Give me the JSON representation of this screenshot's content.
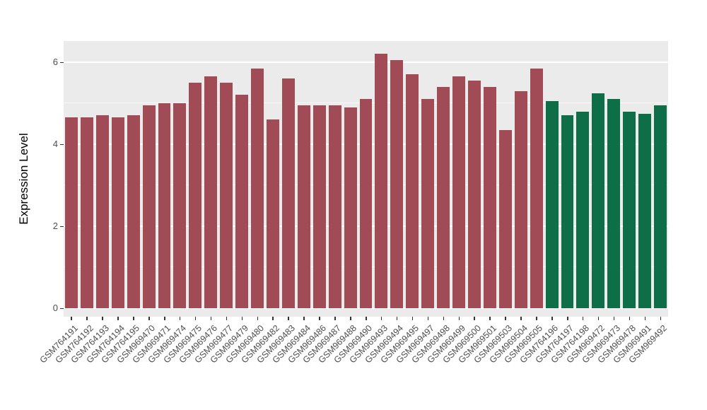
{
  "chart_data": {
    "type": "bar",
    "title": "",
    "xlabel": "",
    "ylabel": "Expression Level",
    "ylim": [
      0,
      6.5
    ],
    "yticks": [
      0,
      2,
      4,
      6
    ],
    "minor_yticks": [
      1,
      3,
      5
    ],
    "grid": true,
    "legend_position": "none",
    "panel_background": "#EBEBEB",
    "grid_color": "#FFFFFF",
    "group_colors": {
      "groupA": "#A04B55",
      "groupB": "#0E6E48"
    },
    "categories": [
      "GSM764191",
      "GSM764192",
      "GSM764193",
      "GSM764194",
      "GSM764195",
      "GSM969470",
      "GSM969471",
      "GSM969474",
      "GSM969475",
      "GSM969476",
      "GSM969477",
      "GSM969479",
      "GSM969480",
      "GSM969482",
      "GSM969483",
      "GSM969484",
      "GSM969486",
      "GSM969487",
      "GSM969488",
      "GSM969490",
      "GSM969493",
      "GSM969494",
      "GSM969495",
      "GSM969497",
      "GSM969498",
      "GSM969499",
      "GSM969500",
      "GSM969501",
      "GSM969503",
      "GSM969504",
      "GSM969505",
      "GSM764196",
      "GSM764197",
      "GSM764198",
      "GSM969472",
      "GSM969473",
      "GSM969478",
      "GSM969491",
      "GSM969492"
    ],
    "values": [
      4.65,
      4.65,
      4.7,
      4.65,
      4.7,
      4.95,
      5.0,
      5.0,
      5.5,
      5.65,
      5.5,
      5.2,
      5.85,
      4.6,
      5.6,
      4.95,
      4.95,
      4.95,
      4.9,
      5.1,
      6.2,
      6.05,
      5.7,
      5.1,
      5.4,
      5.65,
      5.55,
      5.4,
      4.35,
      5.3,
      5.85,
      5.05,
      4.7,
      4.8,
      5.25,
      5.1,
      4.8,
      4.75,
      4.95
    ],
    "groups": [
      "groupA",
      "groupA",
      "groupA",
      "groupA",
      "groupA",
      "groupA",
      "groupA",
      "groupA",
      "groupA",
      "groupA",
      "groupA",
      "groupA",
      "groupA",
      "groupA",
      "groupA",
      "groupA",
      "groupA",
      "groupA",
      "groupA",
      "groupA",
      "groupA",
      "groupA",
      "groupA",
      "groupA",
      "groupA",
      "groupA",
      "groupA",
      "groupA",
      "groupA",
      "groupA",
      "groupA",
      "groupB",
      "groupB",
      "groupB",
      "groupB",
      "groupB",
      "groupB",
      "groupB",
      "groupB"
    ]
  }
}
